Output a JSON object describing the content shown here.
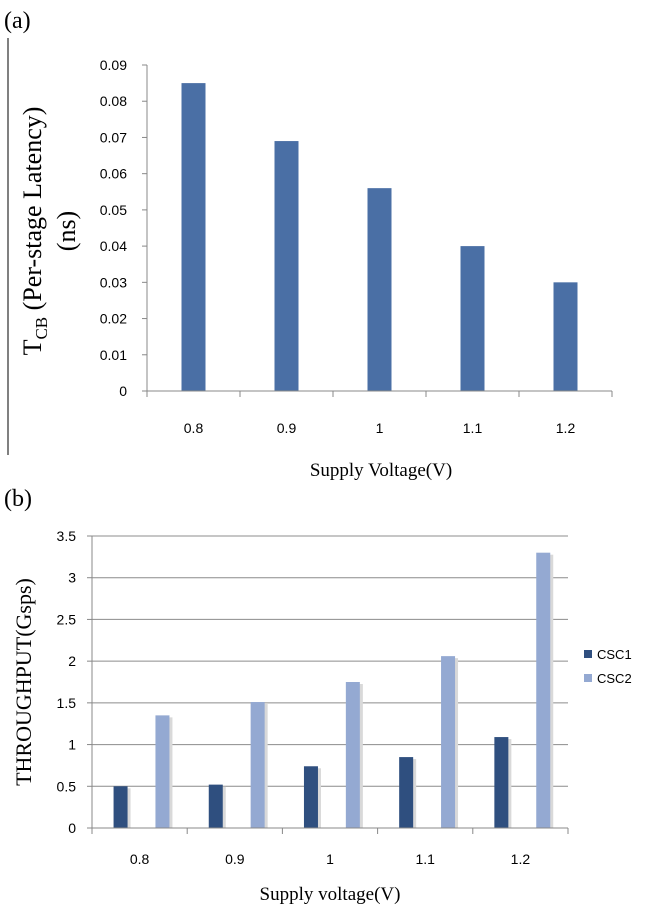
{
  "chart_data": [
    {
      "panel_label": "(a)",
      "type": "bar",
      "categories": [
        "0.8",
        "0.9",
        "1",
        "1.1",
        "1.2"
      ],
      "values": [
        0.085,
        0.069,
        0.056,
        0.04,
        0.03
      ],
      "ylim": [
        0,
        0.09
      ],
      "yticks": [
        "0",
        "0.01",
        "0.02",
        "0.03",
        "0.04",
        "0.05",
        "0.06",
        "0.07",
        "0.08",
        "0.09"
      ],
      "xlabel": "Supply Voltage(V)",
      "ylabel_main": "T",
      "ylabel_sub": "CB",
      "ylabel_rest": "  (Per-stage Latency)",
      "ylabel_line2": "(ns)",
      "grid": false,
      "color": "#4a6fa5"
    },
    {
      "panel_label": "(b)",
      "type": "bar",
      "categories": [
        "0.8",
        "0.9",
        "1",
        "1.1",
        "1.2"
      ],
      "series": [
        {
          "name": "CSC1",
          "values": [
            0.5,
            0.52,
            0.74,
            0.85,
            1.09
          ],
          "color": "#2f4f7f"
        },
        {
          "name": "CSC2",
          "values": [
            1.35,
            1.51,
            1.75,
            2.06,
            3.3
          ],
          "color": "#94a9d2"
        }
      ],
      "ylim": [
        0,
        3.5
      ],
      "yticks": [
        "0",
        "0.5",
        "1",
        "1.5",
        "2",
        "2.5",
        "3",
        "3.5"
      ],
      "xlabel": "Supply voltage(V)",
      "ylabel": "THROUGHPUT(Gsps)",
      "grid": true,
      "legend": "right"
    }
  ]
}
